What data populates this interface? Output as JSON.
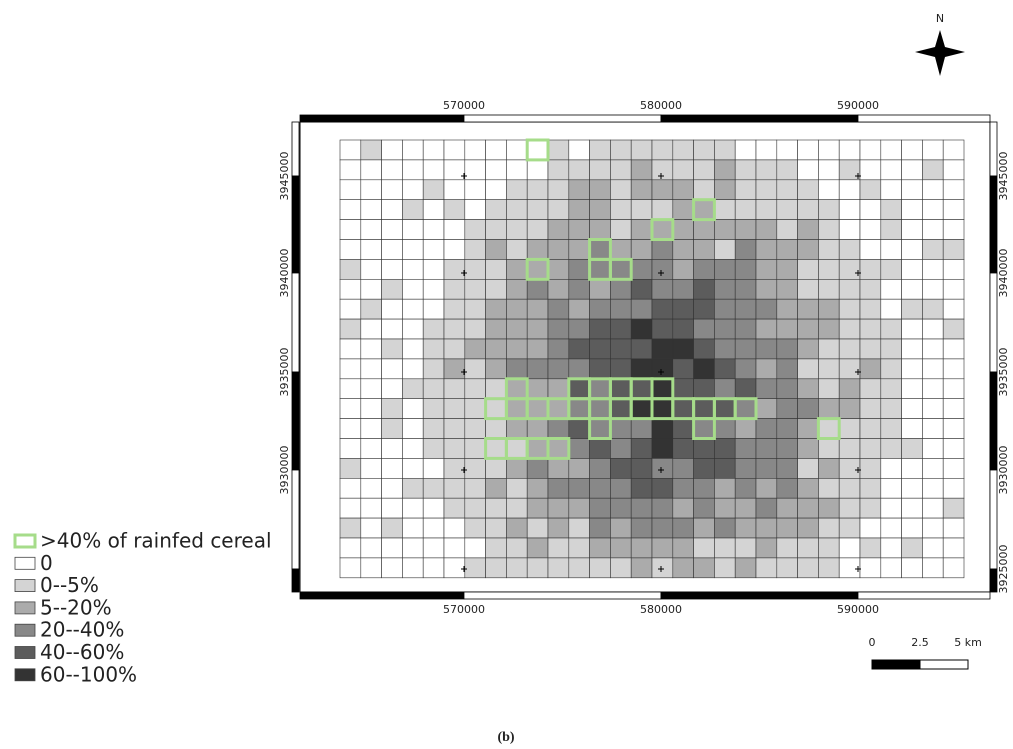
{
  "north": "N",
  "x_labels_top": [
    "570000",
    "580000",
    "590000"
  ],
  "x_labels_bottom": [
    "570000",
    "580000",
    "590000"
  ],
  "y_labels_left": [
    "3945000",
    "3940000",
    "3935000",
    "3930000"
  ],
  "y_labels_right": [
    "3945000",
    "3940000",
    "3935000",
    "3930000",
    "3925000"
  ],
  "scale": {
    "labels": [
      "0",
      "2.5",
      "5 km"
    ]
  },
  "legend": [
    {
      "label": ">40% of rainfed cereal",
      "color": "#a6dc8a",
      "outline": true
    },
    {
      "label": "0",
      "color": "#ffffff"
    },
    {
      "label": "0--5%",
      "color": "#d4d4d4"
    },
    {
      "label": "5--20%",
      "color": "#ababab"
    },
    {
      "label": "20--40%",
      "color": "#888888"
    },
    {
      "label": "40--60%",
      "color": "#5c5c5c"
    },
    {
      "label": "60--100%",
      "color": "#333333"
    }
  ],
  "caption": "(b)"
}
